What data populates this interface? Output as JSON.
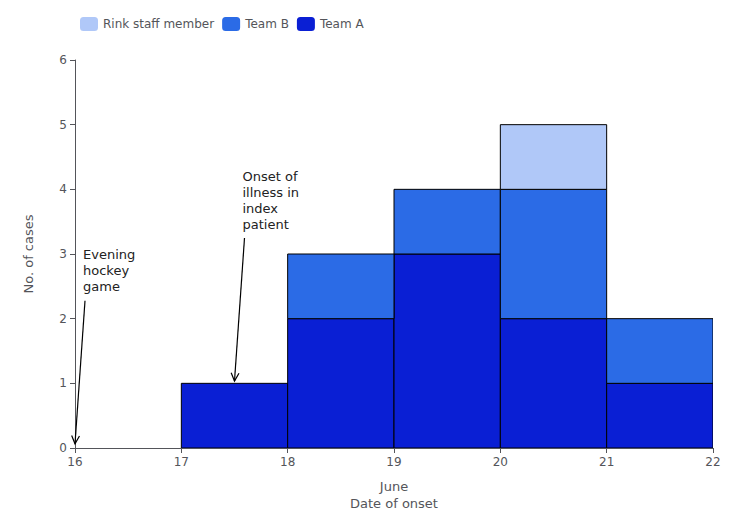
{
  "chart_data": {
    "type": "bar",
    "stacked": true,
    "x": [
      17,
      18,
      19,
      20,
      21
    ],
    "series": [
      {
        "name": "Team A",
        "color": "#0a1fd4",
        "values": [
          1,
          2,
          3,
          2,
          1
        ]
      },
      {
        "name": "Team B",
        "color": "#2b6be6",
        "values": [
          0,
          1,
          1,
          2,
          1
        ]
      },
      {
        "name": "Rink staff member",
        "color": "#b0c8f8",
        "values": [
          0,
          0,
          0,
          1,
          0
        ]
      }
    ],
    "xlabel": "June\nDate of onset",
    "ylabel": "No. of cases",
    "xlim": [
      16,
      22
    ],
    "ylim": [
      0,
      6
    ],
    "xticks": [
      16,
      17,
      18,
      19,
      20,
      21,
      22
    ],
    "yticks": [
      0,
      1,
      2,
      3,
      4,
      5,
      6
    ],
    "grid": false,
    "legend": "upper left",
    "annotations": [
      {
        "text": "Evening\nhockey\ngame",
        "x": 16.0,
        "y": 0.05
      },
      {
        "text": "Onset of\nillness in\nindex\npatient",
        "x": 17.5,
        "y": 1.02
      }
    ]
  }
}
